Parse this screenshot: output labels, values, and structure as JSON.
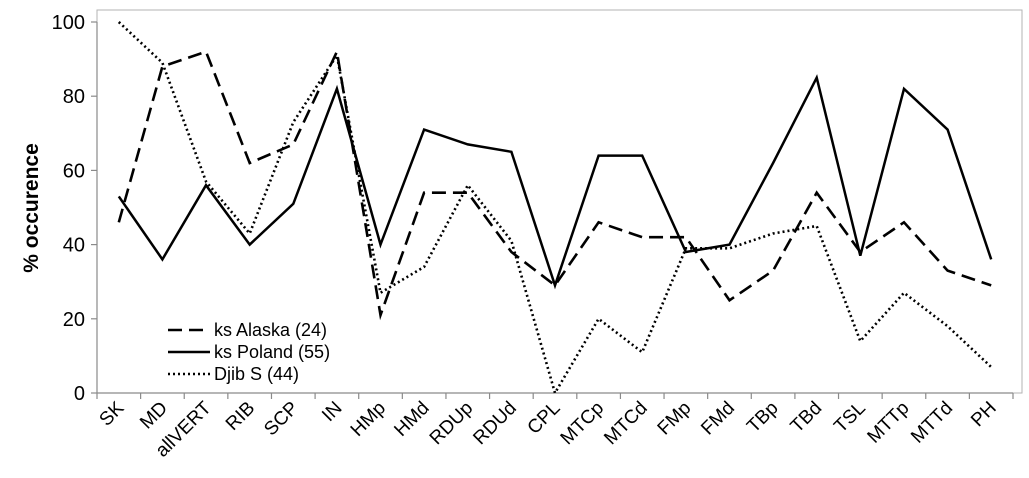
{
  "chart_data": {
    "type": "line",
    "ylabel": "% occurence",
    "xlabel": "",
    "ylim": [
      0,
      100
    ],
    "yticks": [
      0,
      20,
      40,
      60,
      80,
      100
    ],
    "grid": false,
    "legend_position": "bottom-left",
    "categories": [
      "SK",
      "MD",
      "allVERT",
      "RIB",
      "SCP",
      "IN",
      "HMp",
      "HMd",
      "RDUp",
      "RDUd",
      "CPL",
      "MTCp",
      "MTCd",
      "FMp",
      "FMd",
      "TBp",
      "TBd",
      "TSL",
      "MTTp",
      "MTTd",
      "PH"
    ],
    "series": [
      {
        "name": "ks Alaska (24)",
        "dash": "dashed",
        "color": "#000000",
        "values": [
          46,
          88,
          92,
          62,
          67,
          92,
          21,
          54,
          54,
          38,
          29,
          46,
          42,
          42,
          25,
          33,
          54,
          38,
          46,
          33,
          29
        ]
      },
      {
        "name": "ks Poland (55)",
        "dash": "solid",
        "color": "#000000",
        "values": [
          53,
          36,
          56,
          40,
          51,
          82,
          40,
          71,
          67,
          65,
          29,
          64,
          64,
          38,
          40,
          62,
          85,
          37,
          82,
          71,
          36
        ]
      },
      {
        "name": "Djib S (44)",
        "dash": "dotted",
        "color": "#000000",
        "values": [
          100,
          89,
          57,
          43,
          73,
          91,
          27,
          34,
          56,
          41,
          0,
          20,
          11,
          39,
          39,
          43,
          45,
          14,
          27,
          18,
          7
        ]
      }
    ]
  }
}
